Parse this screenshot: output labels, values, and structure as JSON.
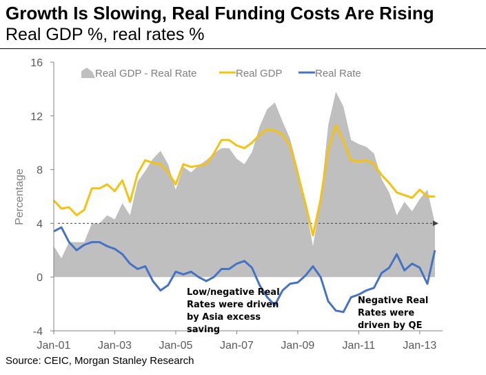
{
  "header": {
    "title": "Growth Is Slowing, Real Funding Costs Are Rising",
    "subtitle": "Real GDP %, real rates %"
  },
  "source": "Source: CEIC, Morgan Stanley Research",
  "colors": {
    "gap": "#bfbfbf",
    "gdp": "#f5c20f",
    "rate": "#4472c4"
  },
  "chart_data": {
    "type": "line",
    "title": "Growth Is Slowing, Real Funding Costs Are Rising",
    "subtitle": "Real GDP %, real rates %",
    "ylabel": "Percentage",
    "xlabel": "",
    "ylim": [
      -4,
      16
    ],
    "xlim": [
      2001.0,
      2013.75
    ],
    "y_ticks": [
      "16",
      "12",
      "8",
      "4",
      "0",
      "-4"
    ],
    "y_tick_values": [
      16,
      12,
      8,
      4,
      0,
      -4
    ],
    "x_ticks": [
      "Jan-01",
      "Jan-03",
      "Jan-05",
      "Jan-07",
      "Jan-09",
      "Jan-11",
      "Jan-13"
    ],
    "x_tick_values": [
      2001,
      2003,
      2005,
      2007,
      2009,
      2011,
      2013
    ],
    "legend": [
      "Real GDP - Real Rate",
      "Real GDP",
      "Real Rate"
    ],
    "legend_position": "top",
    "reference_line": {
      "y": 4,
      "style": "dashed-arrow"
    },
    "annotations": [
      {
        "lines": [
          "Low/negative Real",
          "Rates were driven",
          "by Asia excess",
          "saving"
        ]
      },
      {
        "lines": [
          "Negative Real",
          "Rates were",
          "driven by QE"
        ]
      }
    ],
    "series": [
      {
        "name": "Real GDP",
        "type": "line",
        "x": [
          2001.0,
          2001.25,
          2001.5,
          2001.75,
          2002.0,
          2002.25,
          2002.5,
          2002.75,
          2003.0,
          2003.25,
          2003.5,
          2003.75,
          2004.0,
          2004.25,
          2004.5,
          2004.75,
          2005.0,
          2005.25,
          2005.5,
          2005.75,
          2006.0,
          2006.25,
          2006.5,
          2006.75,
          2007.0,
          2007.25,
          2007.5,
          2007.75,
          2008.0,
          2008.25,
          2008.5,
          2008.75,
          2009.0,
          2009.25,
          2009.5,
          2009.75,
          2010.0,
          2010.25,
          2010.5,
          2010.75,
          2011.0,
          2011.25,
          2011.5,
          2011.75,
          2012.0,
          2012.25,
          2012.5,
          2012.75,
          2013.0,
          2013.25,
          2013.5
        ],
        "values": [
          5.7,
          5.1,
          5.2,
          4.6,
          5.0,
          6.6,
          6.6,
          6.9,
          6.4,
          7.2,
          5.6,
          7.7,
          8.7,
          8.5,
          8.4,
          7.8,
          6.9,
          8.4,
          8.2,
          8.3,
          8.4,
          9.2,
          10.2,
          10.2,
          9.8,
          9.6,
          10.0,
          10.6,
          11.0,
          10.9,
          10.6,
          9.8,
          7.7,
          5.5,
          3.1,
          5.8,
          9.5,
          11.3,
          10.1,
          8.7,
          8.6,
          8.7,
          8.4,
          7.6,
          7.0,
          6.3,
          6.1,
          5.9,
          6.5,
          6.0,
          6.0
        ]
      },
      {
        "name": "Real Rate",
        "type": "line",
        "x": [
          2001.0,
          2001.25,
          2001.5,
          2001.75,
          2002.0,
          2002.25,
          2002.5,
          2002.75,
          2003.0,
          2003.25,
          2003.5,
          2003.75,
          2004.0,
          2004.25,
          2004.5,
          2004.75,
          2005.0,
          2005.25,
          2005.5,
          2005.75,
          2006.0,
          2006.25,
          2006.5,
          2006.75,
          2007.0,
          2007.25,
          2007.5,
          2007.75,
          2008.0,
          2008.25,
          2008.5,
          2008.75,
          2009.0,
          2009.25,
          2009.5,
          2009.75,
          2010.0,
          2010.25,
          2010.5,
          2010.75,
          2011.0,
          2011.25,
          2011.5,
          2011.75,
          2012.0,
          2012.25,
          2012.5,
          2012.75,
          2013.0,
          2013.25,
          2013.5
        ],
        "values": [
          3.4,
          3.7,
          2.6,
          2.0,
          2.4,
          2.6,
          2.6,
          2.3,
          2.1,
          1.7,
          1.0,
          0.6,
          0.8,
          -0.3,
          -1.0,
          -0.6,
          0.4,
          0.2,
          0.4,
          0.0,
          -0.3,
          0.0,
          0.6,
          0.6,
          1.0,
          1.2,
          0.7,
          -0.6,
          -1.5,
          -2.1,
          -1.0,
          -0.5,
          -0.4,
          0.1,
          0.8,
          0.0,
          -1.8,
          -2.5,
          -2.6,
          -1.5,
          -1.3,
          -1.0,
          -0.8,
          0.3,
          0.7,
          1.7,
          0.5,
          1.0,
          0.7,
          -0.5,
          2.0
        ]
      },
      {
        "name": "Real GDP - Real Rate",
        "type": "area",
        "x": [
          2001.0,
          2001.25,
          2001.5,
          2001.75,
          2002.0,
          2002.25,
          2002.5,
          2002.75,
          2003.0,
          2003.25,
          2003.5,
          2003.75,
          2004.0,
          2004.25,
          2004.5,
          2004.75,
          2005.0,
          2005.25,
          2005.5,
          2005.75,
          2006.0,
          2006.25,
          2006.5,
          2006.75,
          2007.0,
          2007.25,
          2007.5,
          2007.75,
          2008.0,
          2008.25,
          2008.5,
          2008.75,
          2009.0,
          2009.25,
          2009.5,
          2009.75,
          2010.0,
          2010.25,
          2010.5,
          2010.75,
          2011.0,
          2011.25,
          2011.5,
          2011.75,
          2012.0,
          2012.25,
          2012.5,
          2012.75,
          2013.0,
          2013.25,
          2013.5
        ],
        "values": [
          2.3,
          1.4,
          2.6,
          2.6,
          2.6,
          4.0,
          4.0,
          4.6,
          4.3,
          5.5,
          4.6,
          7.1,
          7.9,
          8.8,
          9.4,
          8.4,
          6.5,
          8.2,
          7.8,
          8.3,
          8.7,
          9.2,
          9.6,
          9.6,
          8.8,
          8.4,
          9.3,
          11.2,
          12.5,
          13.0,
          11.6,
          10.3,
          8.1,
          5.4,
          2.3,
          5.8,
          11.3,
          13.8,
          12.7,
          10.2,
          9.9,
          9.7,
          9.2,
          7.3,
          6.3,
          4.6,
          5.6,
          4.9,
          5.8,
          6.5,
          4.0
        ]
      }
    ]
  }
}
